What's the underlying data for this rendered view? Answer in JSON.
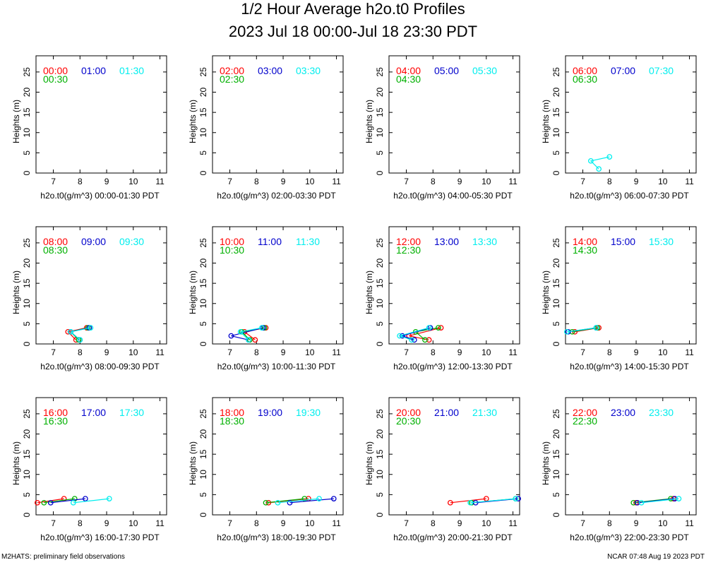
{
  "title": "1/2 Hour Average h2o.t0 Profiles",
  "subtitle": "2023 Jul 18 00:00-Jul 18 23:30 PDT",
  "footer_left": "M2HATS: preliminary field observations",
  "footer_right": "NCAR 07:48 Aug 19 2023 PDT",
  "colors": {
    "c0": "#ff0000",
    "c1": "#00b000",
    "c2": "#0000cc",
    "c3": "#00eeee"
  },
  "chart_data": [
    {
      "type": "line",
      "xlabel": "h2o.t0(g/m^3) 00:00-01:30 PDT",
      "ylabel": "Heights (m)",
      "xticks": [
        7,
        8,
        9,
        10,
        11
      ],
      "yticks": [
        0,
        5,
        10,
        15,
        20,
        25
      ],
      "legend": [
        "00:00",
        "00:30",
        "01:00",
        "01:30"
      ],
      "series": [
        {
          "x": [],
          "y": []
        },
        {
          "x": [],
          "y": []
        },
        {
          "x": [],
          "y": []
        },
        {
          "x": [],
          "y": []
        }
      ]
    },
    {
      "type": "line",
      "xlabel": "h2o.t0(g/m^3) 02:00-03:30 PDT",
      "ylabel": "Heights (m)",
      "xticks": [
        7,
        8,
        9,
        10,
        11
      ],
      "yticks": [
        0,
        5,
        10,
        15,
        20,
        25
      ],
      "legend": [
        "02:00",
        "02:30",
        "03:00",
        "03:30"
      ],
      "series": [
        {
          "x": [],
          "y": []
        },
        {
          "x": [],
          "y": []
        },
        {
          "x": [],
          "y": []
        },
        {
          "x": [],
          "y": []
        }
      ]
    },
    {
      "type": "line",
      "xlabel": "h2o.t0(g/m^3) 04:00-05:30 PDT",
      "ylabel": "Heights (m)",
      "xticks": [
        7,
        8,
        9,
        10,
        11
      ],
      "yticks": [
        0,
        5,
        10,
        15,
        20,
        25
      ],
      "legend": [
        "04:00",
        "04:30",
        "05:00",
        "05:30"
      ],
      "series": [
        {
          "x": [],
          "y": []
        },
        {
          "x": [],
          "y": []
        },
        {
          "x": [],
          "y": []
        },
        {
          "x": [],
          "y": []
        }
      ]
    },
    {
      "type": "line",
      "xlabel": "h2o.t0(g/m^3) 06:00-07:30 PDT",
      "ylabel": "Heights (m)",
      "xticks": [
        7,
        8,
        9,
        10,
        11
      ],
      "yticks": [
        0,
        5,
        10,
        15,
        20,
        25
      ],
      "legend": [
        "06:00",
        "06:30",
        "07:00",
        "07:30"
      ],
      "series": [
        {
          "x": [],
          "y": []
        },
        {
          "x": [],
          "y": []
        },
        {
          "x": [],
          "y": []
        },
        {
          "x": [
            7.6,
            7.3,
            8.0
          ],
          "y": [
            1,
            3,
            4
          ]
        }
      ]
    },
    {
      "type": "line",
      "xlabel": "h2o.t0(g/m^3) 08:00-09:30 PDT",
      "ylabel": "Heights (m)",
      "xticks": [
        7,
        8,
        9,
        10,
        11
      ],
      "yticks": [
        0,
        5,
        10,
        15,
        20,
        25
      ],
      "legend": [
        "08:00",
        "08:30",
        "09:00",
        "09:30"
      ],
      "series": [
        {
          "x": [
            7.85,
            7.55,
            8.25
          ],
          "y": [
            1,
            3,
            4
          ]
        },
        {
          "x": [
            7.95,
            7.65,
            8.3
          ],
          "y": [
            1,
            3,
            4
          ]
        },
        {
          "x": [
            8.0,
            7.65,
            8.35
          ],
          "y": [
            1,
            3,
            4
          ]
        },
        {
          "x": [
            8.0,
            7.65,
            8.4
          ],
          "y": [
            1,
            3,
            4
          ]
        }
      ]
    },
    {
      "type": "line",
      "xlabel": "h2o.t0(g/m^3) 10:00-11:30 PDT",
      "ylabel": "Heights (m)",
      "xticks": [
        7,
        8,
        9,
        10,
        11
      ],
      "yticks": [
        0,
        5,
        10,
        15,
        20,
        25
      ],
      "legend": [
        "10:00",
        "10:30",
        "11:00",
        "11:30"
      ],
      "series": [
        {
          "x": [
            7.95,
            7.55,
            8.35
          ],
          "y": [
            1,
            3,
            4
          ]
        },
        {
          "x": [
            7.75,
            7.45,
            8.3
          ],
          "y": [
            1,
            3,
            4
          ]
        },
        {
          "x": [
            7.7,
            7.05,
            8.25
          ],
          "y": [
            1,
            2,
            4
          ]
        },
        {
          "x": [
            7.7,
            7.4,
            8.2
          ],
          "y": [
            1,
            3,
            4
          ]
        }
      ]
    },
    {
      "type": "line",
      "xlabel": "h2o.t0(g/m^3) 12:00-13:30 PDT",
      "ylabel": "Heights (m)",
      "xticks": [
        7,
        8,
        9,
        10,
        11
      ],
      "yticks": [
        0,
        5,
        10,
        15,
        20,
        25
      ],
      "legend": [
        "12:00",
        "12:30",
        "13:00",
        "13:30"
      ],
      "series": [
        {
          "x": [
            7.85,
            7.1,
            8.3
          ],
          "y": [
            1,
            2,
            4
          ]
        },
        {
          "x": [
            7.7,
            7.35,
            8.2
          ],
          "y": [
            1,
            3,
            4
          ]
        },
        {
          "x": [
            7.3,
            6.85,
            7.9
          ],
          "y": [
            1,
            2,
            4
          ]
        },
        {
          "x": [
            7.2,
            6.75,
            7.85
          ],
          "y": [
            1,
            2,
            4
          ]
        }
      ]
    },
    {
      "type": "line",
      "xlabel": "h2o.t0(g/m^3) 14:00-15:30 PDT",
      "ylabel": "Heights (m)",
      "xticks": [
        7,
        8,
        9,
        10,
        11
      ],
      "yticks": [
        0,
        5,
        10,
        15,
        20,
        25
      ],
      "legend": [
        "14:00",
        "14:30",
        "15:00",
        "15:30"
      ],
      "series": [
        {
          "x": [
            6.7,
            7.6
          ],
          "y": [
            3,
            4
          ]
        },
        {
          "x": [
            6.6,
            7.55
          ],
          "y": [
            3,
            4
          ]
        },
        {
          "x": [
            6.45,
            7.5
          ],
          "y": [
            3,
            4
          ]
        },
        {
          "x": [
            6.4,
            7.5
          ],
          "y": [
            3,
            4
          ]
        }
      ]
    },
    {
      "type": "line",
      "xlabel": "h2o.t0(g/m^3) 16:00-17:30 PDT",
      "ylabel": "Heights (m)",
      "xticks": [
        7,
        8,
        9,
        10,
        11
      ],
      "yticks": [
        0,
        5,
        10,
        15,
        20,
        25
      ],
      "legend": [
        "16:00",
        "16:30",
        "17:00",
        "17:30"
      ],
      "series": [
        {
          "x": [
            6.4,
            7.4
          ],
          "y": [
            3,
            4
          ]
        },
        {
          "x": [
            6.65,
            7.8
          ],
          "y": [
            3,
            4
          ]
        },
        {
          "x": [
            6.9,
            8.2
          ],
          "y": [
            3,
            4
          ]
        },
        {
          "x": [
            7.75,
            9.1
          ],
          "y": [
            3,
            4
          ]
        }
      ]
    },
    {
      "type": "line",
      "xlabel": "h2o.t0(g/m^3) 18:00-19:30 PDT",
      "ylabel": "Heights (m)",
      "xticks": [
        7,
        8,
        9,
        10,
        11
      ],
      "yticks": [
        0,
        5,
        10,
        15,
        20,
        25
      ],
      "legend": [
        "18:00",
        "18:30",
        "19:00",
        "19:30"
      ],
      "series": [
        {
          "x": [
            8.45,
            9.95
          ],
          "y": [
            3,
            4
          ]
        },
        {
          "x": [
            8.35,
            9.8
          ],
          "y": [
            3,
            4
          ]
        },
        {
          "x": [
            9.25,
            10.9
          ],
          "y": [
            3,
            4
          ]
        },
        {
          "x": [
            8.8,
            10.35
          ],
          "y": [
            3,
            4
          ]
        }
      ]
    },
    {
      "type": "line",
      "xlabel": "h2o.t0(g/m^3) 20:00-21:30 PDT",
      "ylabel": "Heights (m)",
      "xticks": [
        7,
        8,
        9,
        10,
        11
      ],
      "yticks": [
        0,
        5,
        10,
        15,
        20,
        25
      ],
      "legend": [
        "20:00",
        "20:30",
        "21:00",
        "21:30"
      ],
      "series": [
        {
          "x": [
            8.65,
            10.0
          ],
          "y": [
            3,
            4
          ]
        },
        {
          "x": [
            9.45,
            11.1
          ],
          "y": [
            3,
            4
          ]
        },
        {
          "x": [
            9.6,
            11.2
          ],
          "y": [
            3,
            4
          ]
        },
        {
          "x": [
            9.4,
            11.1
          ],
          "y": [
            3,
            4
          ]
        }
      ]
    },
    {
      "type": "line",
      "xlabel": "h2o.t0(g/m^3) 22:00-23:30 PDT",
      "ylabel": "Heights (m)",
      "xticks": [
        7,
        8,
        9,
        10,
        11
      ],
      "yticks": [
        0,
        5,
        10,
        15,
        20,
        25
      ],
      "legend": [
        "22:00",
        "22:30",
        "23:00",
        "23:30"
      ],
      "series": [
        {
          "x": [
            9.0,
            10.4
          ],
          "y": [
            3,
            4
          ]
        },
        {
          "x": [
            8.9,
            10.3
          ],
          "y": [
            3,
            4
          ]
        },
        {
          "x": [
            9.05,
            10.45
          ],
          "y": [
            3,
            4
          ]
        },
        {
          "x": [
            9.2,
            10.6
          ],
          "y": [
            3,
            4
          ]
        }
      ]
    }
  ]
}
